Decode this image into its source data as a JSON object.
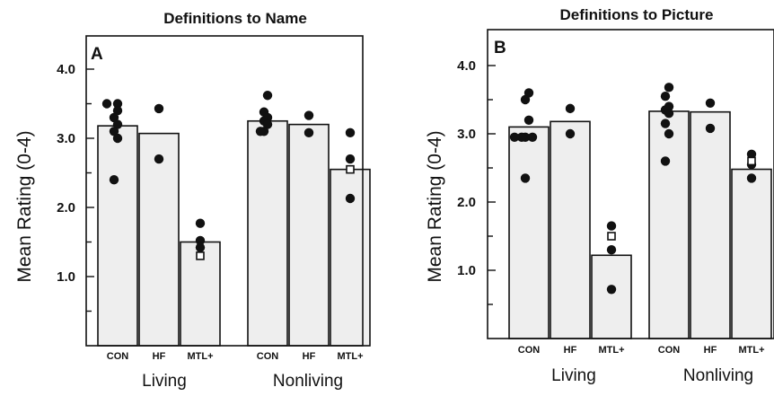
{
  "chart_data": [
    {
      "type": "bar",
      "panel": "A",
      "title": "Definitions to Name",
      "ylabel": "Mean Rating (0-4)",
      "ylim": [
        0,
        4.5
      ],
      "yticks": [
        "1.0",
        "2.0",
        "3.0",
        "4.0"
      ],
      "groups": [
        {
          "name": "Living",
          "bars": [
            {
              "category": "CON",
              "value": 3.18,
              "points": [
                3.5,
                3.5,
                3.4,
                3.3,
                3.2,
                3.1,
                3.0,
                2.4
              ],
              "open_points": []
            },
            {
              "category": "HF",
              "value": 3.07,
              "points": [
                3.43,
                2.7
              ],
              "open_points": []
            },
            {
              "category": "MTL+",
              "value": 1.5,
              "points": [
                1.77,
                1.52,
                1.42
              ],
              "open_points": [
                1.3
              ]
            }
          ]
        },
        {
          "name": "Nonliving",
          "bars": [
            {
              "category": "CON",
              "value": 3.25,
              "points": [
                3.62,
                3.38,
                3.3,
                3.25,
                3.2,
                3.1,
                3.1
              ],
              "open_points": []
            },
            {
              "category": "HF",
              "value": 3.2,
              "points": [
                3.33,
                3.08
              ],
              "open_points": []
            },
            {
              "category": "MTL+",
              "value": 2.55,
              "points": [
                3.08,
                2.7,
                2.13
              ],
              "open_points": [
                2.55
              ]
            }
          ]
        }
      ]
    },
    {
      "type": "bar",
      "panel": "B",
      "title": "Definitions to Picture",
      "ylabel": "Mean Rating (0-4)",
      "ylim": [
        0,
        4.5
      ],
      "yticks": [
        "1.0",
        "2.0",
        "3.0",
        "4.0"
      ],
      "groups": [
        {
          "name": "Living",
          "bars": [
            {
              "category": "CON",
              "value": 3.1,
              "points": [
                3.6,
                3.5,
                3.2,
                2.95,
                2.95,
                2.95,
                2.95,
                2.35
              ],
              "open_points": []
            },
            {
              "category": "HF",
              "value": 3.18,
              "points": [
                3.37,
                3.0
              ],
              "open_points": []
            },
            {
              "category": "MTL+",
              "value": 1.22,
              "points": [
                1.65,
                1.3,
                0.72
              ],
              "open_points": [
                1.5
              ]
            }
          ]
        },
        {
          "name": "Nonliving",
          "bars": [
            {
              "category": "CON",
              "value": 3.33,
              "points": [
                3.68,
                3.55,
                3.4,
                3.35,
                3.3,
                3.15,
                3.0,
                2.6
              ],
              "open_points": []
            },
            {
              "category": "HF",
              "value": 3.32,
              "points": [
                3.45,
                3.08
              ],
              "open_points": []
            },
            {
              "category": "MTL+",
              "value": 2.48,
              "points": [
                2.7,
                2.55,
                2.35
              ],
              "open_points": [
                2.6
              ]
            }
          ]
        }
      ]
    }
  ]
}
